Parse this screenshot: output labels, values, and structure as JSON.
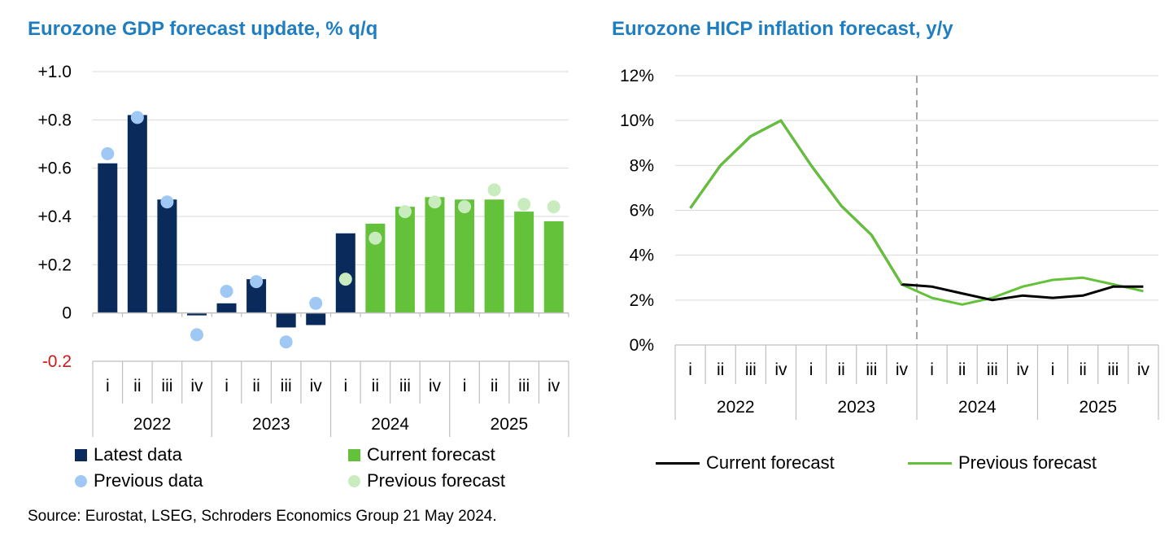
{
  "source": "Source: Eurostat, LSEG, Schroders Economics Group 21 May 2024.",
  "chart_data": [
    {
      "type": "bar",
      "title": "Eurozone GDP forecast update, % q/q",
      "ylim": [
        -0.2,
        1.0
      ],
      "yticks": [
        {
          "value": 1.0,
          "label": "+1.0"
        },
        {
          "value": 0.8,
          "label": "+0.8"
        },
        {
          "value": 0.6,
          "label": "+0.6"
        },
        {
          "value": 0.4,
          "label": "+0.4"
        },
        {
          "value": 0.2,
          "label": "+0.2"
        },
        {
          "value": 0.0,
          "label": "0"
        },
        {
          "value": -0.2,
          "label": "-0.2"
        }
      ],
      "grid": true,
      "legend_position": "bottom",
      "quarters": [
        "i",
        "ii",
        "iii",
        "iv",
        "i",
        "ii",
        "iii",
        "iv",
        "i",
        "ii",
        "iii",
        "iv",
        "i",
        "ii",
        "iii",
        "iv"
      ],
      "years": [
        "2022",
        "2023",
        "2024",
        "2025"
      ],
      "series": [
        {
          "name": "Latest data",
          "kind": "bar",
          "color": "#0b2a5c",
          "values": [
            0.62,
            0.82,
            0.47,
            -0.01,
            0.04,
            0.14,
            -0.06,
            -0.05,
            0.33,
            null,
            null,
            null,
            null,
            null,
            null,
            null
          ]
        },
        {
          "name": "Current forecast",
          "kind": "bar",
          "color": "#64c23a",
          "values": [
            null,
            null,
            null,
            null,
            null,
            null,
            null,
            null,
            null,
            0.37,
            0.44,
            0.48,
            0.47,
            0.47,
            0.42,
            0.38
          ]
        },
        {
          "name": "Previous data",
          "kind": "dot",
          "color": "#9fc8f5",
          "values": [
            0.66,
            0.81,
            0.46,
            -0.09,
            0.09,
            0.13,
            -0.12,
            0.04,
            null,
            null,
            null,
            null,
            null,
            null,
            null,
            null
          ]
        },
        {
          "name": "Previous forecast",
          "kind": "dot",
          "color": "#c8ecbe",
          "values": [
            null,
            null,
            null,
            null,
            null,
            null,
            null,
            null,
            0.14,
            0.31,
            0.42,
            0.46,
            0.44,
            0.51,
            0.45,
            0.44
          ]
        }
      ]
    },
    {
      "type": "line",
      "title": "Eurozone HICP inflation forecast, y/y",
      "ylim": [
        0,
        12
      ],
      "yticks": [
        {
          "value": 12,
          "label": "12%"
        },
        {
          "value": 10,
          "label": "10%"
        },
        {
          "value": 8,
          "label": "8%"
        },
        {
          "value": 6,
          "label": "6%"
        },
        {
          "value": 4,
          "label": "4%"
        },
        {
          "value": 2,
          "label": "2%"
        },
        {
          "value": 0,
          "label": "0%"
        }
      ],
      "grid": true,
      "legend_position": "bottom",
      "quarters": [
        "i",
        "ii",
        "iii",
        "iv",
        "i",
        "ii",
        "iii",
        "iv",
        "i",
        "ii",
        "iii",
        "iv",
        "i",
        "ii",
        "iii",
        "iv"
      ],
      "years": [
        "2022",
        "2023",
        "2024",
        "2025"
      ],
      "divider_after_quarter_index": 8,
      "series": [
        {
          "name": "Current forecast",
          "color": "#000000",
          "values": [
            6.1,
            8.0,
            9.3,
            10.0,
            8.0,
            6.2,
            4.9,
            2.7,
            2.6,
            2.3,
            2.0,
            2.2,
            2.1,
            2.2,
            2.6,
            2.6
          ]
        },
        {
          "name": "Previous forecast",
          "color": "#64c23a",
          "values": [
            6.1,
            8.0,
            9.3,
            10.0,
            8.0,
            6.2,
            4.9,
            2.7,
            2.1,
            1.8,
            2.1,
            2.6,
            2.9,
            3.0,
            2.7,
            2.4
          ]
        }
      ]
    }
  ]
}
